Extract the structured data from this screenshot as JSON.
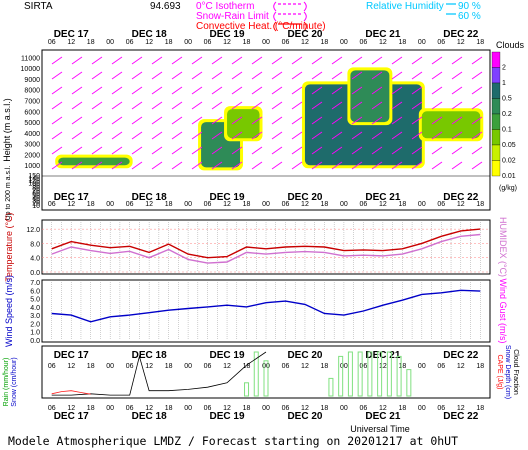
{
  "header": {
    "site": "SIRTA",
    "coords": "94.693",
    "isotherm_label": "0°C Isotherm",
    "snow_rain_label": "Snow-Rain Limit",
    "convective_label": "Convective Heat. (°C/minute)",
    "rh_label": "Relative Humidity",
    "rh_90": "90 %",
    "rh_60": "60 %",
    "colors": {
      "isotherm": "#ff00ff",
      "snow_rain": "#ff00ff",
      "convective": "#ff0000",
      "rh": "#00c8ff"
    }
  },
  "time_axis": {
    "hour_ticks": [
      "06",
      "12",
      "18",
      "00",
      "06",
      "12",
      "18",
      "00",
      "06",
      "12",
      "18",
      "00",
      "06",
      "12",
      "18",
      "00",
      "06",
      "12",
      "18",
      "00",
      "06",
      "12",
      "18"
    ],
    "days": [
      "DEC 17",
      "DEC 18",
      "DEC 19",
      "DEC 20",
      "DEC 21",
      "DEC 22"
    ],
    "xlabel": "Universal Time",
    "start_hour": 6,
    "end_hour": 138
  },
  "footer": "Modele Atmospherique LMDZ / Forecast starting on 20201217 at 0hUT",
  "chart_data": [
    {
      "type": "heatmap",
      "id": "clouds",
      "ylabel": "Height (m a.s.l.)",
      "ylabel_low": "Up to 200 m a.s.l.",
      "yticks_high": [
        1000,
        2000,
        3000,
        4000,
        5000,
        6000,
        7000,
        8000,
        9000,
        10000,
        11000
      ],
      "yticks_low": [
        10,
        20,
        30,
        40,
        50,
        60,
        70,
        80,
        90,
        100,
        120,
        140,
        150
      ],
      "colorbar": {
        "title": "Clouds",
        "unit": "(g/kg)",
        "levels": [
          "0.01",
          "0.02",
          "0.05",
          "0.1",
          "0.2",
          "0.5",
          "1",
          "2"
        ],
        "colors": [
          "#ffff00",
          "#c8f000",
          "#78c800",
          "#3ca03c",
          "#2e8b57",
          "#1e6b6b",
          "#8040ff",
          "#ff00ff"
        ]
      },
      "cloud_blobs": [
        {
          "t0": 8,
          "t1": 30,
          "z0": 1000,
          "z1": 1700,
          "level": 3
        },
        {
          "t0": 52,
          "t1": 64,
          "z0": 800,
          "z1": 5000,
          "level": 4
        },
        {
          "t0": 60,
          "t1": 70,
          "z0": 3500,
          "z1": 6200,
          "level": 2
        },
        {
          "t0": 84,
          "t1": 120,
          "z0": 1000,
          "z1": 8500,
          "level": 5
        },
        {
          "t0": 98,
          "t1": 110,
          "z0": 5000,
          "z1": 9800,
          "level": 4
        },
        {
          "t0": 120,
          "t1": 138,
          "z0": 3500,
          "z1": 6000,
          "level": 2
        }
      ]
    },
    {
      "type": "line",
      "id": "temperature",
      "ylabel": "Temperature (°C)",
      "ylabel_right": "HUMIDEX (°C)",
      "yticks": [
        "12.0",
        "8.0",
        "4.0",
        "0.0"
      ],
      "ylim": [
        0,
        14
      ],
      "x": [
        6,
        12,
        18,
        24,
        30,
        36,
        42,
        48,
        54,
        60,
        66,
        72,
        78,
        84,
        90,
        96,
        102,
        108,
        114,
        120,
        126,
        132,
        138
      ],
      "series": [
        {
          "color": "#c80000",
          "values": [
            6.5,
            8.5,
            7.5,
            6.8,
            7.2,
            5.5,
            7.8,
            5.0,
            4.0,
            4.3,
            7.0,
            6.5,
            7.0,
            7.2,
            7.0,
            6.0,
            6.2,
            6.0,
            6.5,
            8.0,
            10.0,
            11.5,
            12.0
          ]
        },
        {
          "color": "#d070d0",
          "values": [
            5.0,
            7.0,
            6.0,
            5.2,
            5.8,
            4.0,
            6.3,
            3.5,
            2.5,
            2.8,
            5.5,
            5.0,
            5.5,
            5.7,
            5.5,
            4.5,
            4.7,
            4.5,
            5.0,
            6.5,
            8.5,
            10.0,
            10.5
          ]
        }
      ]
    },
    {
      "type": "line",
      "id": "wind",
      "ylabel": "Wind Speed (m/s)",
      "ylabel_right": "Wind Gust (m/s)",
      "yticks": [
        "7.0",
        "6.0",
        "5.0",
        "4.0",
        "3.0",
        "2.0",
        "1.0",
        "0.0"
      ],
      "ylim": [
        0,
        7
      ],
      "x": [
        6,
        12,
        18,
        24,
        30,
        36,
        42,
        48,
        54,
        60,
        66,
        72,
        78,
        84,
        90,
        96,
        102,
        108,
        114,
        120,
        126,
        132,
        138
      ],
      "series": [
        {
          "color": "#0000c8",
          "values": [
            3.2,
            3.0,
            2.2,
            2.8,
            3.0,
            3.3,
            3.6,
            3.8,
            4.0,
            4.2,
            4.0,
            4.5,
            4.7,
            4.3,
            3.2,
            3.0,
            3.5,
            4.2,
            4.8,
            5.5,
            5.7,
            6.0,
            5.9
          ]
        }
      ]
    },
    {
      "type": "bar",
      "id": "precip",
      "ylabel_left": "Rain (mm/hour)",
      "ylabel_left2": "Snow (cm/hour)",
      "ylabel_right": "CAPE (J/g)",
      "ylabel_right2": "Snow Depth (cm)",
      "ylabel_right3": "Cloud Fraction",
      "x": [
        66,
        69,
        72,
        92,
        95,
        98,
        101,
        104,
        107,
        110,
        113,
        116
      ],
      "values": [
        0.3,
        1.0,
        0.8,
        0.4,
        0.9,
        1.0,
        1.0,
        1.0,
        1.0,
        1.0,
        0.9,
        0.6
      ],
      "bar_color": "#80e080",
      "line_x": [
        6,
        12,
        18,
        24,
        30,
        33,
        36,
        42,
        48,
        54,
        60,
        66,
        72
      ],
      "line_values": [
        0.02,
        0.02,
        0.05,
        0.02,
        0.02,
        0.9,
        0.12,
        0.12,
        0.15,
        0.2,
        0.3,
        0.7,
        1.0
      ],
      "line_color": "#000000",
      "cape_x": [
        6,
        9,
        12,
        15,
        18
      ],
      "cape_values": [
        0.05,
        0.1,
        0.12,
        0.08,
        0.04
      ],
      "cape_color": "#ff2020"
    }
  ]
}
